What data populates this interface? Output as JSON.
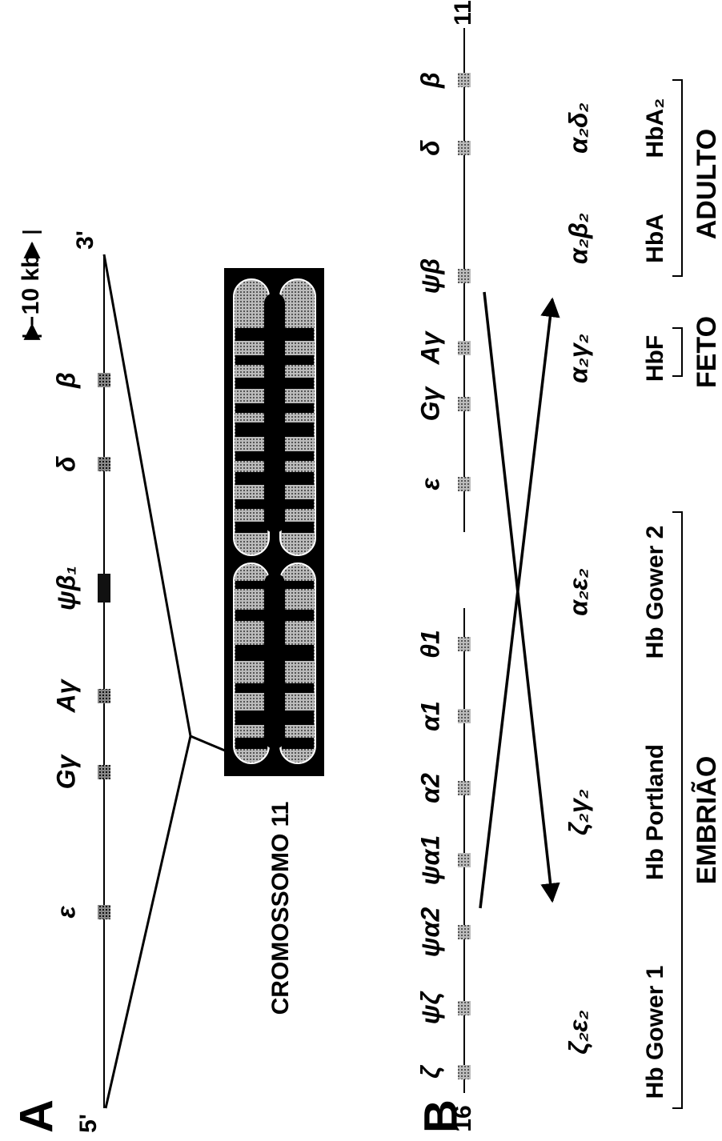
{
  "panel_a": {
    "label": "A",
    "five_prime": "5'",
    "three_prime": "3'",
    "scale": "10 kb",
    "genes": [
      "ε",
      "Gγ",
      "Aγ",
      "ψβ₁",
      "δ",
      "β"
    ],
    "chromosome_label": "CROMOSSOMO 11"
  },
  "panel_b": {
    "label": "B",
    "chr16": "16",
    "chr11": "11",
    "alpha_genes": [
      "ζ",
      "ψζ",
      "ψα2",
      "ψα1",
      "α2",
      "α1",
      "θ1"
    ],
    "beta_genes": [
      "ε",
      "Gγ",
      "Aγ",
      "ψβ",
      "δ",
      "β"
    ],
    "hemoglobins": [
      {
        "chains": "ζ₂ε₂",
        "name": "Hb Gower 1"
      },
      {
        "chains": "ζ₂γ₂",
        "name": "Hb Portland"
      },
      {
        "chains": "α₂ε₂",
        "name": "Hb Gower 2"
      },
      {
        "chains": "α₂γ₂",
        "name": "HbF"
      },
      {
        "chains": "α₂β₂",
        "name": "HbA"
      },
      {
        "chains": "α₂δ₂",
        "name": "HbA₂"
      }
    ],
    "stages": [
      "EMBRIÃO",
      "FETO",
      "ADULTO"
    ]
  }
}
